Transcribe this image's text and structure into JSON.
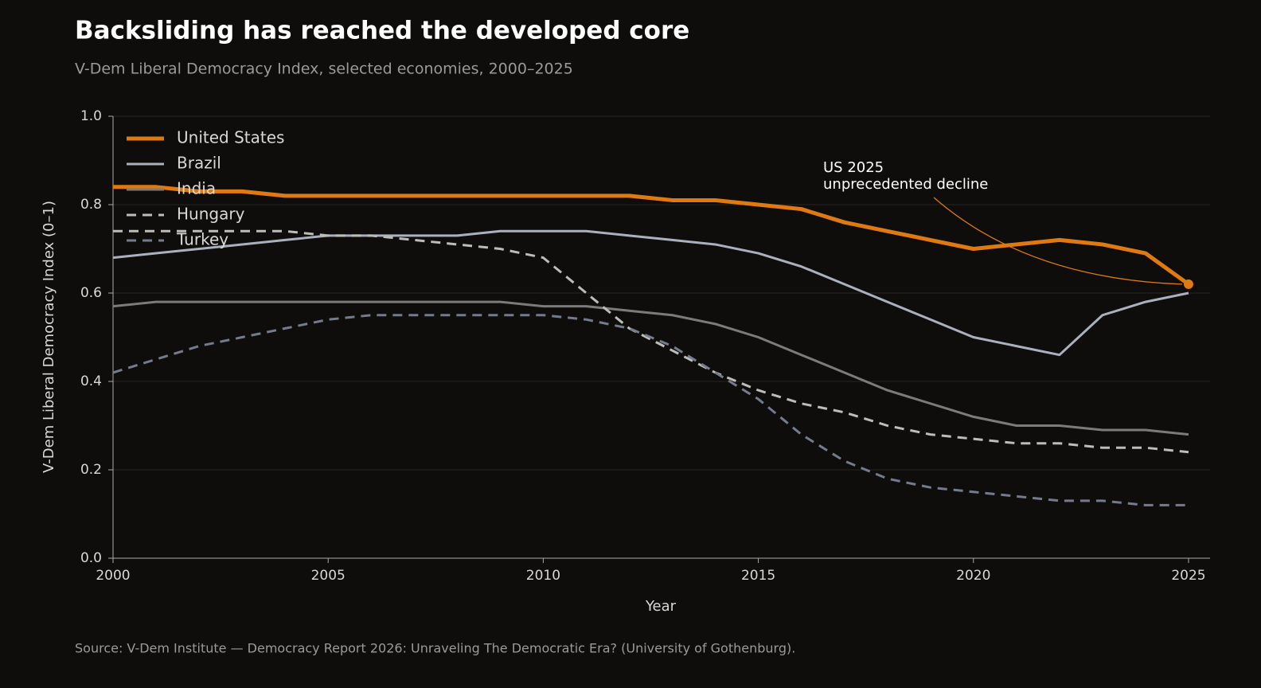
{
  "chart_data": {
    "type": "line",
    "title": "Backsliding has reached the developed core",
    "subtitle": "V-Dem Liberal Democracy Index, selected economies, 2000–2025",
    "x_label": "Year",
    "y_label": "V-Dem Liberal Democracy Index (0–1)",
    "source": "Source: V-Dem Institute — Democracy Report 2026: Unraveling The Democratic Era? (University of Gothenburg).",
    "x": [
      2000,
      2001,
      2002,
      2003,
      2004,
      2005,
      2006,
      2007,
      2008,
      2009,
      2010,
      2011,
      2012,
      2013,
      2014,
      2015,
      2016,
      2017,
      2018,
      2019,
      2020,
      2021,
      2022,
      2023,
      2024,
      2025
    ],
    "xlim": [
      2000,
      2025.5
    ],
    "xticks": [
      2000,
      2005,
      2010,
      2015,
      2020,
      2025
    ],
    "ylim": [
      0,
      1
    ],
    "yticks": [
      {
        "value": 0,
        "label": "0.0"
      },
      0.2,
      0.4,
      0.6,
      0.8,
      {
        "value": 1,
        "label": "1.0"
      }
    ],
    "grid": true,
    "legend": "top-left",
    "series": [
      {
        "name": "United States",
        "color": "#df7a12",
        "linestyle": "solid",
        "linewidth": 5,
        "values": [
          0.84,
          0.84,
          0.83,
          0.83,
          0.82,
          0.82,
          0.82,
          0.82,
          0.82,
          0.82,
          0.82,
          0.82,
          0.82,
          0.81,
          0.81,
          0.8,
          0.79,
          0.76,
          0.74,
          0.72,
          0.7,
          0.71,
          0.72,
          0.71,
          0.69,
          0.62
        ]
      },
      {
        "name": "Brazil",
        "color": "#aab0bd",
        "linestyle": "solid",
        "linewidth": 3,
        "values": [
          0.68,
          0.69,
          0.7,
          0.71,
          0.72,
          0.73,
          0.73,
          0.73,
          0.73,
          0.74,
          0.74,
          0.74,
          0.73,
          0.72,
          0.71,
          0.69,
          0.66,
          0.62,
          0.58,
          0.54,
          0.5,
          0.48,
          0.46,
          0.55,
          0.58,
          0.6
        ]
      },
      {
        "name": "India",
        "color": "#7b7b7b",
        "linestyle": "solid",
        "linewidth": 3,
        "values": [
          0.57,
          0.58,
          0.58,
          0.58,
          0.58,
          0.58,
          0.58,
          0.58,
          0.58,
          0.58,
          0.57,
          0.57,
          0.56,
          0.55,
          0.53,
          0.5,
          0.46,
          0.42,
          0.38,
          0.35,
          0.32,
          0.3,
          0.3,
          0.29,
          0.29,
          0.28
        ]
      },
      {
        "name": "Hungary",
        "color": "#bdbdb8",
        "linestyle": "dashed",
        "linewidth": 3,
        "values": [
          0.74,
          0.74,
          0.74,
          0.74,
          0.74,
          0.73,
          0.73,
          0.72,
          0.71,
          0.7,
          0.68,
          0.6,
          0.52,
          0.47,
          0.42,
          0.38,
          0.35,
          0.33,
          0.3,
          0.28,
          0.27,
          0.26,
          0.26,
          0.25,
          0.25,
          0.24
        ]
      },
      {
        "name": "Turkey",
        "color": "#747b8d",
        "linestyle": "dashed",
        "linewidth": 3,
        "values": [
          0.42,
          0.45,
          0.48,
          0.5,
          0.52,
          0.54,
          0.55,
          0.55,
          0.55,
          0.55,
          0.55,
          0.54,
          0.52,
          0.48,
          0.42,
          0.36,
          0.28,
          0.22,
          0.18,
          0.16,
          0.15,
          0.14,
          0.13,
          0.13,
          0.12,
          0.12
        ]
      }
    ],
    "annotation": {
      "lines": [
        "US 2025",
        "unprecedented decline"
      ],
      "series": 0,
      "point": 25
    }
  }
}
